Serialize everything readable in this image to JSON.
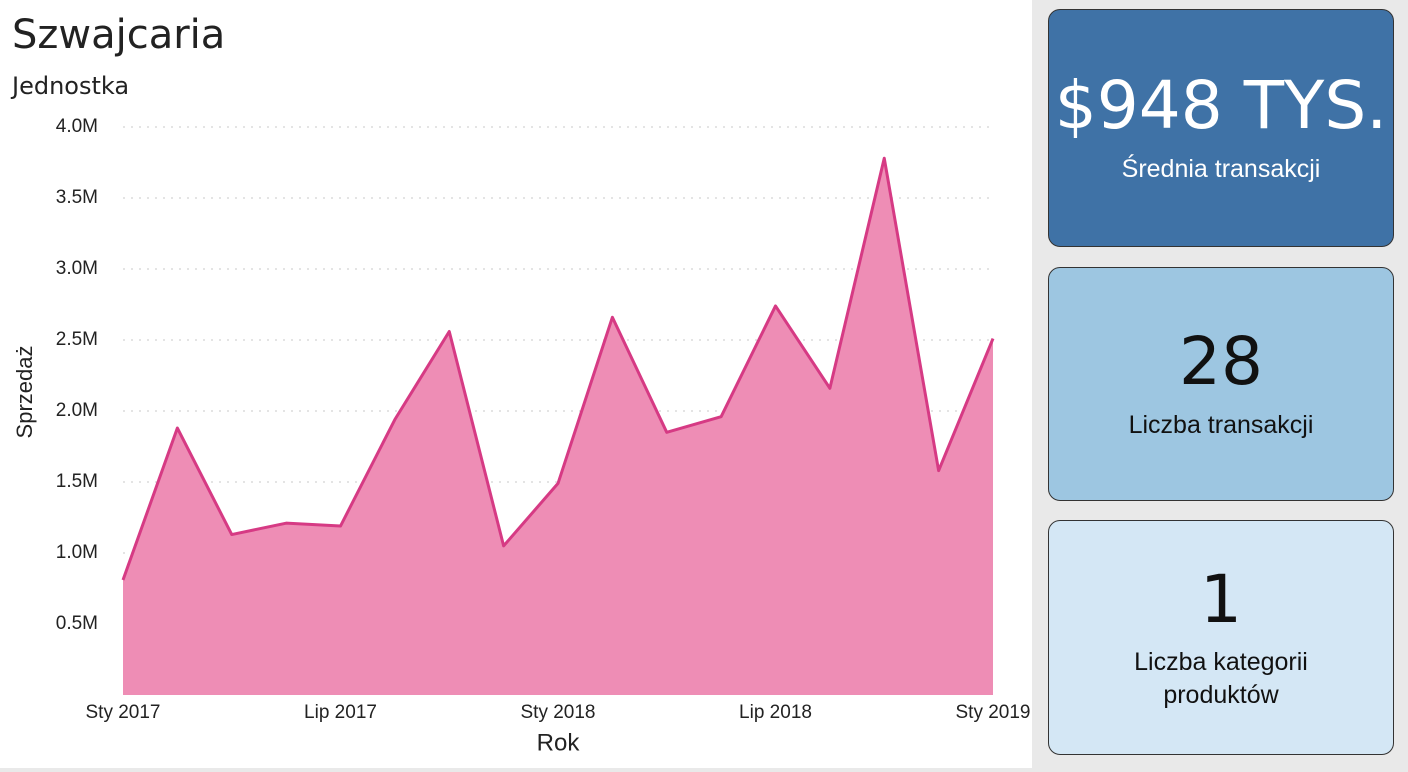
{
  "chart_data": {
    "type": "area",
    "title": "Szwajcaria",
    "subtitle": "Jednostka",
    "x_label": "Rok",
    "y_label": "Sprzedaż",
    "x": [
      0,
      1.5,
      3,
      4.5,
      6,
      7.5,
      9,
      10.5,
      12,
      13.5,
      15,
      16.5,
      18,
      19.5,
      21,
      22.5,
      24
    ],
    "values": [
      810000,
      1880000,
      1130000,
      1210000,
      1190000,
      1940000,
      2560000,
      1050000,
      1490000,
      2660000,
      1850000,
      1960000,
      2740000,
      2160000,
      3780000,
      1580000,
      2510000
    ],
    "color": "#d63a84",
    "fill": "#ee8db5",
    "xlim": [
      0,
      24
    ],
    "xticks": [
      {
        "value": 0,
        "label": "Sty 2017"
      },
      {
        "value": 6,
        "label": "Lip 2017"
      },
      {
        "value": 12,
        "label": "Sty 2018"
      },
      {
        "value": 18,
        "label": "Lip 2018"
      },
      {
        "value": 24,
        "label": "Sty 2019"
      }
    ],
    "ylim": [
      0,
      4000000
    ],
    "yticks": [
      {
        "value": 500000,
        "label": "0.5M"
      },
      {
        "value": 1000000,
        "label": "1.0M"
      },
      {
        "value": 1500000,
        "label": "1.5M"
      },
      {
        "value": 2000000,
        "label": "2.0M"
      },
      {
        "value": 2500000,
        "label": "2.5M"
      },
      {
        "value": 3000000,
        "label": "3.0M"
      },
      {
        "value": 3500000,
        "label": "3.5M"
      },
      {
        "value": 4000000,
        "label": "4.0M"
      }
    ],
    "grid": true
  },
  "cards": [
    {
      "value": "$948 TYS.",
      "label": "Średnia transakcji",
      "color": "#3f72a6",
      "text_color": "#ffffff"
    },
    {
      "value": 28,
      "label": "Liczba transakcji",
      "color": "#9dc6e1",
      "text_color": "#111111"
    },
    {
      "value": 1,
      "label": "Liczba kategorii produktów",
      "color": "#d4e7f5",
      "text_color": "#111111"
    }
  ]
}
